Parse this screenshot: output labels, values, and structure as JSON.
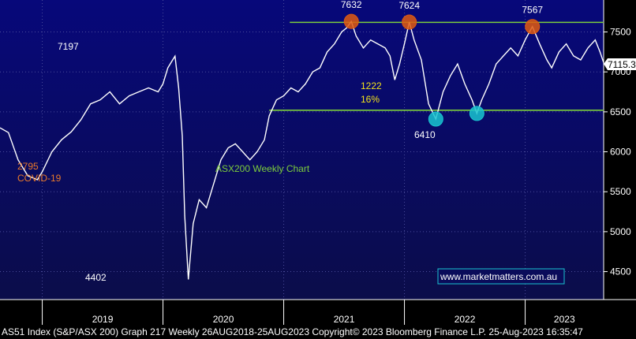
{
  "chart_data": {
    "type": "line",
    "title": "ASX200 Weekly Chart",
    "y_ticks": [
      4500,
      5000,
      5500,
      6000,
      6500,
      7000,
      7500
    ],
    "y_range": [
      4150,
      7900
    ],
    "x_ticks": [
      "2019",
      "2020",
      "2021",
      "2022",
      "2023"
    ],
    "x_range": [
      2018.65,
      2023.65
    ],
    "last_value_label": "7115.3",
    "series": [
      {
        "name": "ASX200",
        "points": [
          [
            2018.65,
            6300
          ],
          [
            2018.72,
            6240
          ],
          [
            2018.8,
            5900
          ],
          [
            2018.88,
            5700
          ],
          [
            2018.96,
            5650
          ],
          [
            2019.0,
            5750
          ],
          [
            2019.08,
            6000
          ],
          [
            2019.16,
            6150
          ],
          [
            2019.24,
            6250
          ],
          [
            2019.32,
            6400
          ],
          [
            2019.4,
            6600
          ],
          [
            2019.48,
            6650
          ],
          [
            2019.56,
            6750
          ],
          [
            2019.64,
            6600
          ],
          [
            2019.72,
            6700
          ],
          [
            2019.8,
            6750
          ],
          [
            2019.88,
            6800
          ],
          [
            2019.96,
            6750
          ],
          [
            2020.0,
            6850
          ],
          [
            2020.04,
            7050
          ],
          [
            2020.08,
            7150
          ],
          [
            2020.1,
            7197
          ],
          [
            2020.13,
            6800
          ],
          [
            2020.16,
            6200
          ],
          [
            2020.18,
            5200
          ],
          [
            2020.21,
            4402
          ],
          [
            2020.25,
            5100
          ],
          [
            2020.3,
            5400
          ],
          [
            2020.36,
            5300
          ],
          [
            2020.42,
            5600
          ],
          [
            2020.48,
            5900
          ],
          [
            2020.54,
            6050
          ],
          [
            2020.6,
            6100
          ],
          [
            2020.66,
            6000
          ],
          [
            2020.72,
            5900
          ],
          [
            2020.78,
            6000
          ],
          [
            2020.84,
            6150
          ],
          [
            2020.88,
            6450
          ],
          [
            2020.94,
            6650
          ],
          [
            2021.0,
            6700
          ],
          [
            2021.06,
            6800
          ],
          [
            2021.12,
            6750
          ],
          [
            2021.18,
            6850
          ],
          [
            2021.24,
            7000
          ],
          [
            2021.3,
            7050
          ],
          [
            2021.36,
            7250
          ],
          [
            2021.42,
            7350
          ],
          [
            2021.48,
            7500
          ],
          [
            2021.52,
            7550
          ],
          [
            2021.56,
            7632
          ],
          [
            2021.6,
            7450
          ],
          [
            2021.66,
            7300
          ],
          [
            2021.72,
            7400
          ],
          [
            2021.78,
            7350
          ],
          [
            2021.84,
            7300
          ],
          [
            2021.88,
            7200
          ],
          [
            2021.92,
            6900
          ],
          [
            2021.96,
            7100
          ],
          [
            2022.0,
            7350
          ],
          [
            2022.04,
            7624
          ],
          [
            2022.08,
            7400
          ],
          [
            2022.14,
            7150
          ],
          [
            2022.2,
            6600
          ],
          [
            2022.26,
            6410
          ],
          [
            2022.32,
            6750
          ],
          [
            2022.38,
            6950
          ],
          [
            2022.44,
            7100
          ],
          [
            2022.5,
            6850
          ],
          [
            2022.56,
            6650
          ],
          [
            2022.6,
            6480
          ],
          [
            2022.64,
            6650
          ],
          [
            2022.7,
            6850
          ],
          [
            2022.76,
            7100
          ],
          [
            2022.82,
            7200
          ],
          [
            2022.88,
            7300
          ],
          [
            2022.94,
            7200
          ],
          [
            2023.0,
            7400
          ],
          [
            2023.06,
            7567
          ],
          [
            2023.12,
            7350
          ],
          [
            2023.18,
            7150
          ],
          [
            2023.22,
            7050
          ],
          [
            2023.28,
            7250
          ],
          [
            2023.34,
            7350
          ],
          [
            2023.4,
            7200
          ],
          [
            2023.46,
            7150
          ],
          [
            2023.52,
            7300
          ],
          [
            2023.58,
            7400
          ],
          [
            2023.62,
            7250
          ],
          [
            2023.65,
            7115
          ]
        ]
      }
    ],
    "resistance_level": 7620,
    "support_level": 6520,
    "peak_markers": [
      {
        "label": "7632",
        "x": 2021.56,
        "y": 7632
      },
      {
        "label": "7624",
        "x": 2022.04,
        "y": 7624
      },
      {
        "label": "7567",
        "x": 2023.06,
        "y": 7567
      }
    ],
    "trough_markers": [
      {
        "label": "6410",
        "x": 2022.26,
        "y": 6410
      },
      {
        "x": 2022.6,
        "y": 6480
      }
    ],
    "annotations": {
      "high_2020": "7197",
      "low_2020": "4402",
      "covid_points": "2795",
      "covid_label": "COVID-19",
      "drop_points": "1222",
      "drop_pct": "16%"
    },
    "colors": {
      "background": "#000000",
      "line": "#ffffff",
      "plot_bg": "#000080",
      "level": "#7ccd3c",
      "peak": "#e05a10",
      "trough": "#19c4d0",
      "covid": "#e8782a",
      "drop": "#f2e21a",
      "title": "#7ccd3c",
      "watermark_border": "#19c4d0"
    }
  },
  "watermark": "www.marketmatters.com.au",
  "footer": "AS51 Index (S&P/ASX 200) Graph 217  Weekly 26AUG2018-25AUG2023 Copyright© 2023 Bloomberg Finance L.P.  25-Aug-2023 16:35:47"
}
